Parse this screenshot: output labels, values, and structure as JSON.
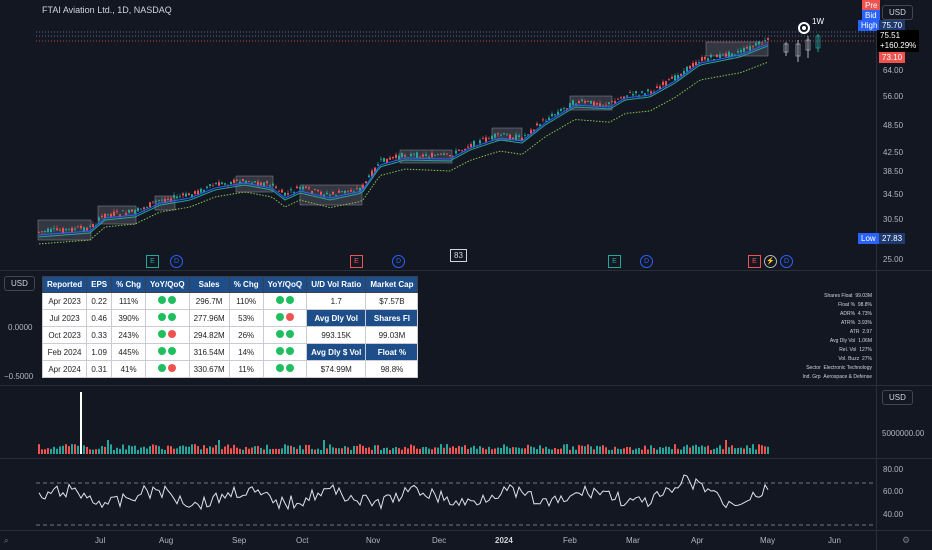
{
  "header": {
    "title": "FTAI Aviation Ltd., 1D, NASDAQ",
    "currency": "USD"
  },
  "price_tags": {
    "pre": "Pre",
    "bid": "Bid",
    "high_label": "High",
    "high_value": "75.70",
    "last": "75.51",
    "change": "+160.29%",
    "ask": "73.10",
    "low_label": "Low",
    "low_value": "27.83"
  },
  "price_axis": [
    "64.00",
    "56.00",
    "48.50",
    "42.50",
    "38.50",
    "34.50",
    "30.50",
    "25.00"
  ],
  "chart_marker": {
    "timeframe": "1W",
    "bars_count": "83"
  },
  "events": [
    {
      "type": "E",
      "kind": "earnings",
      "color": "#26a69a"
    },
    {
      "type": "D",
      "kind": "dividend"
    },
    {
      "type": "E",
      "kind": "earnings",
      "color": "#ef5350"
    },
    {
      "type": "D",
      "kind": "dividend"
    },
    {
      "type": "E",
      "kind": "earnings",
      "color": "#26a69a"
    },
    {
      "type": "D",
      "kind": "dividend"
    },
    {
      "type": "E",
      "kind": "earnings",
      "color": "#ef5350"
    },
    {
      "type": "D",
      "kind": "dividend"
    }
  ],
  "indicator_pane": {
    "currency": "USD",
    "axis": [
      "0.0000",
      "−0.5000"
    ]
  },
  "fundamentals": {
    "headers": [
      "Reported",
      "EPS",
      "% Chg",
      "YoY/QoQ",
      "Sales",
      "% Chg",
      "YoY/QoQ"
    ],
    "rows": [
      {
        "reported": "Apr 2023",
        "eps": "0.22",
        "eps_chg": "111%",
        "eps_yoy": "green",
        "eps_qoq": "green",
        "sales": "296.7M",
        "sales_chg": "110%",
        "sales_yoy": "green",
        "sales_qoq": "green"
      },
      {
        "reported": "Jul 2023",
        "eps": "0.46",
        "eps_chg": "390%",
        "eps_yoy": "green",
        "eps_qoq": "green",
        "sales": "277.96M",
        "sales_chg": "53%",
        "sales_yoy": "green",
        "sales_qoq": "red"
      },
      {
        "reported": "Oct 2023",
        "eps": "0.33",
        "eps_chg": "243%",
        "eps_yoy": "green",
        "eps_qoq": "red",
        "sales": "294.82M",
        "sales_chg": "26%",
        "sales_yoy": "green",
        "sales_qoq": "green"
      },
      {
        "reported": "Feb 2024",
        "eps": "1.09",
        "eps_chg": "445%",
        "eps_yoy": "green",
        "eps_qoq": "green",
        "sales": "316.54M",
        "sales_chg": "14%",
        "sales_yoy": "green",
        "sales_qoq": "green"
      },
      {
        "reported": "Apr 2024",
        "eps": "0.31",
        "eps_chg": "41%",
        "eps_yoy": "green",
        "eps_qoq": "red",
        "sales": "330.67M",
        "sales_chg": "11%",
        "sales_yoy": "green",
        "sales_qoq": "green"
      }
    ],
    "side": [
      [
        "U/D Vol Ratio",
        "Market Cap"
      ],
      [
        "1.7",
        "$7.57B"
      ],
      [
        "Avg Dly Vol",
        "Shares Fl"
      ],
      [
        "993.15K",
        "99.03M"
      ],
      [
        "Avg Dly $ Vol",
        "Float %"
      ],
      [
        "$74.99M",
        "98.8%"
      ]
    ]
  },
  "stats": [
    [
      "Shares Float",
      "99.03M"
    ],
    [
      "Float %",
      "98.8%"
    ],
    [
      "ADR%",
      "4.73%"
    ],
    [
      "ATR%",
      "3.93%"
    ],
    [
      "ATR",
      "2.97"
    ],
    [
      "Avg Dly Vol",
      "1.06M"
    ],
    [
      "Rel. Vol",
      "127%"
    ],
    [
      "Vol. Buzz",
      "27%"
    ],
    [
      "Sector",
      "Electronic Technology"
    ],
    [
      "Ind. Grp",
      "Aerospace & Defense"
    ]
  ],
  "volume_pane": {
    "currency": "USD",
    "axis_label": "5000000.00"
  },
  "rsi_pane": {
    "axis": [
      "80.00",
      "60.00",
      "40.00"
    ]
  },
  "time_axis": [
    "Jul",
    "Aug",
    "Sep",
    "Oct",
    "Nov",
    "Dec",
    "2024",
    "Feb",
    "Mar",
    "Apr",
    "May",
    "Jun"
  ],
  "colors": {
    "up": "#26a69a",
    "down": "#ef5350",
    "ema_fast": "#2962ff",
    "ema_slow": "#26a69a",
    "accent": "#2962ff"
  }
}
